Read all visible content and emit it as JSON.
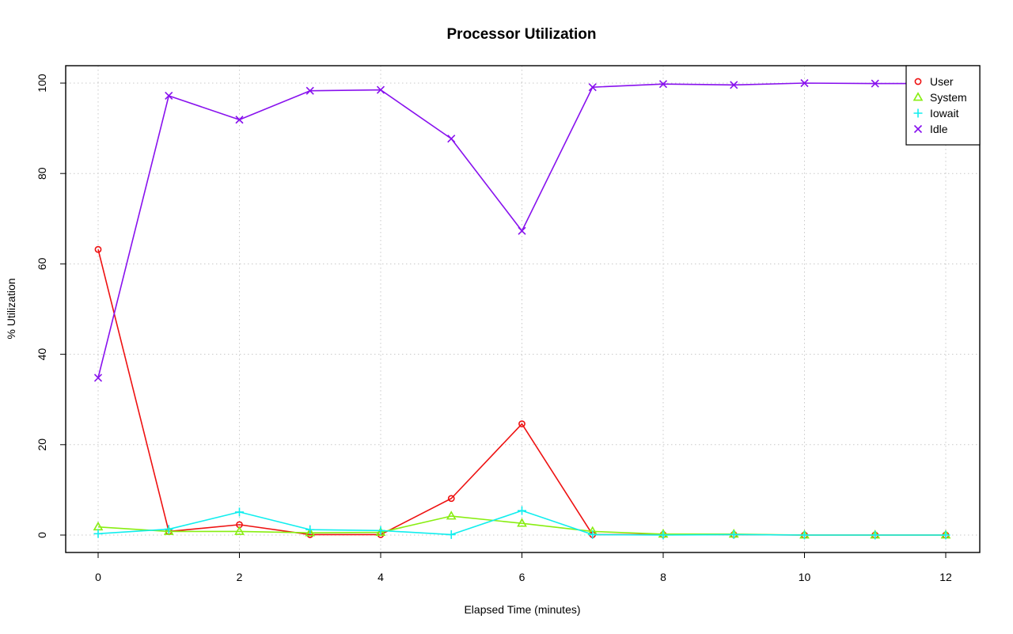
{
  "chart_data": {
    "type": "line",
    "title": "Processor Utilization",
    "xlabel": "Elapsed Time (minutes)",
    "ylabel": "% Utilization",
    "xlim": [
      0,
      12
    ],
    "ylim": [
      0,
      100
    ],
    "xticks": [
      0,
      2,
      4,
      6,
      8,
      10,
      12
    ],
    "yticks": [
      0,
      20,
      40,
      60,
      80,
      100
    ],
    "grid": true,
    "legend_position": "top-right",
    "x": [
      0,
      1,
      2,
      3,
      4,
      5,
      6,
      7,
      8,
      9,
      10,
      11,
      12
    ],
    "series": [
      {
        "name": "User",
        "color": "#ee1111",
        "marker": "circle",
        "values": [
          63.2,
          0.8,
          2.3,
          0.1,
          0.1,
          8.1,
          24.6,
          0.1,
          0.1,
          0.1,
          0.0,
          0.0,
          0.0
        ]
      },
      {
        "name": "System",
        "color": "#88ee11",
        "marker": "triangle",
        "values": [
          1.8,
          0.8,
          0.8,
          0.5,
          0.6,
          4.2,
          2.6,
          0.8,
          0.2,
          0.2,
          0.0,
          0.0,
          0.0
        ]
      },
      {
        "name": "Iowait",
        "color": "#11eeee",
        "marker": "plus",
        "values": [
          0.3,
          1.3,
          5.1,
          1.2,
          1.0,
          0.1,
          5.4,
          0.1,
          0.0,
          0.1,
          0.0,
          0.0,
          0.0
        ]
      },
      {
        "name": "Idle",
        "color": "#8811ee",
        "marker": "cross",
        "values": [
          34.8,
          97.2,
          91.9,
          98.3,
          98.5,
          87.7,
          67.3,
          99.1,
          99.8,
          99.6,
          100.0,
          99.9,
          99.9
        ]
      }
    ]
  }
}
